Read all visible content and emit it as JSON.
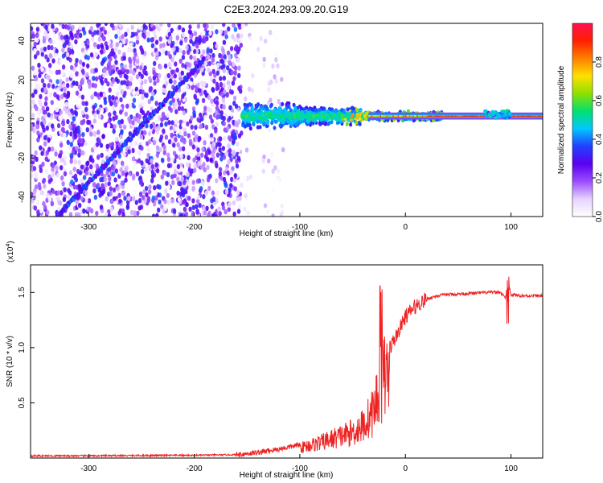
{
  "title": "C2E3.2024.293.09.20.G19",
  "chart_data": [
    {
      "type": "heatmap",
      "xlabel": "Height of straight line (km)",
      "ylabel": "Frequency (Hz)",
      "xlim": [
        -355,
        130
      ],
      "ylim": [
        -50,
        49
      ],
      "x_ticks": [
        -300,
        -200,
        -100,
        0,
        100
      ],
      "y_ticks": [
        -40,
        -20,
        0,
        20,
        40
      ],
      "colorbar": {
        "label": "Normalized spectral amplitude",
        "range": [
          0,
          1
        ],
        "ticks": [
          0.0,
          0.2,
          0.4,
          0.6,
          0.8
        ],
        "colors": [
          "#ffffff",
          "#e6d2ff",
          "#9b4dff",
          "#5a00f0",
          "#2040ff",
          "#00c8ff",
          "#00e070",
          "#8ee000",
          "#ffe000",
          "#ff8000",
          "#ff2000",
          "#ff1050"
        ]
      },
      "features": {
        "diagonal_ridge": {
          "x": [
            -325,
            -195
          ],
          "y": [
            -47,
            28
          ]
        },
        "carrier_line_freq": 1.5,
        "noise_region_end_x": -155
      }
    },
    {
      "type": "line",
      "xlabel": "Height of straight line (km)",
      "ylabel": "SNR (10 * v/v)",
      "scale_label": "(x10",
      "scale_exp": "4",
      "scale_close": ")",
      "xlim": [
        -355,
        130
      ],
      "ylim": [
        0.0,
        1.75
      ],
      "x_ticks": [
        -300,
        -200,
        -100,
        0,
        100
      ],
      "y_ticks": [
        0.5,
        1.0,
        1.5
      ],
      "series_color": "#ee2222",
      "x": [
        -355,
        -300,
        -200,
        -160,
        -140,
        -120,
        -100,
        -80,
        -60,
        -50,
        -40,
        -30,
        -25,
        -20,
        -15,
        -10,
        -5,
        0,
        5,
        10,
        20,
        30,
        40,
        60,
        80,
        90,
        95,
        97,
        100,
        110,
        120,
        130
      ],
      "y": [
        0.02,
        0.02,
        0.025,
        0.03,
        0.05,
        0.08,
        0.12,
        0.18,
        0.26,
        0.3,
        0.38,
        0.55,
        0.8,
        0.95,
        1.0,
        1.08,
        1.18,
        1.28,
        1.33,
        1.38,
        1.44,
        1.47,
        1.48,
        1.49,
        1.5,
        1.5,
        1.45,
        1.6,
        1.48,
        1.47,
        1.47,
        1.47
      ]
    }
  ]
}
